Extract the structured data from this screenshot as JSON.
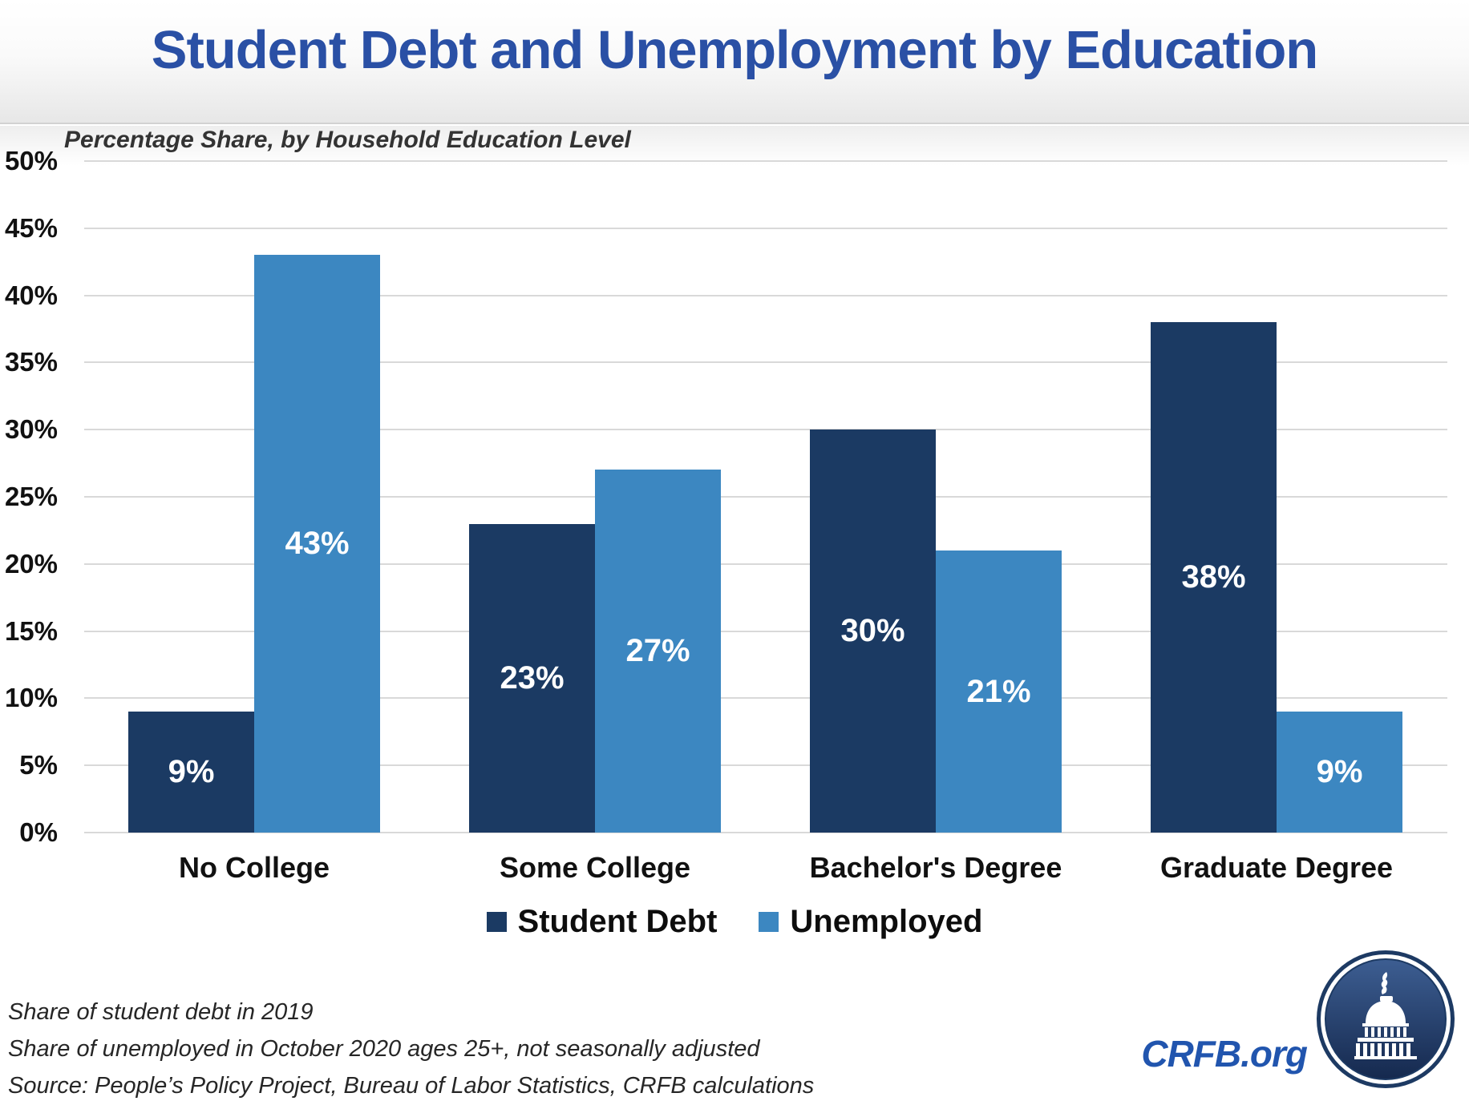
{
  "header": {
    "title": "Student Debt and Unemployment by Education"
  },
  "chart_data": {
    "type": "bar",
    "title": "Student Debt and Unemployment by Education",
    "subtitle": "Percentage Share, by Household Education Level",
    "categories": [
      "No College",
      "Some College",
      "Bachelor's Degree",
      "Graduate Degree"
    ],
    "series": [
      {
        "name": "Student Debt",
        "color": "#1b3a63",
        "values": [
          9,
          23,
          30,
          38
        ],
        "labels": [
          "9%",
          "23%",
          "30%",
          "38%"
        ]
      },
      {
        "name": "Unemployed",
        "color": "#3c87c1",
        "values": [
          43,
          27,
          21,
          9
        ],
        "labels": [
          "43%",
          "27%",
          "21%",
          "9%"
        ]
      }
    ],
    "ylim": [
      0,
      50
    ],
    "ytick_step": 5,
    "yticks": [
      "50%",
      "45%",
      "40%",
      "35%",
      "30%",
      "25%",
      "20%",
      "15%",
      "10%",
      "5%",
      "0%"
    ],
    "grid": true,
    "legend_position": "bottom",
    "data_label_color": "#ffffff"
  },
  "footnotes": [
    "Share of student debt in 2019",
    "Share of unemployed in October 2020 ages 25+, not seasonally adjusted",
    "Source: People’s Policy Project, Bureau of Labor Statistics, CRFB calculations"
  ],
  "branding": {
    "site": "CRFB.org",
    "logo_icon": "capitol-dome-icon",
    "logo_color": "#1d3a63"
  },
  "colors": {
    "title_blue": "#2a50a5",
    "navy": "#1b3a63",
    "light_blue": "#3c87c1",
    "gridline": "#d9d9d9"
  }
}
